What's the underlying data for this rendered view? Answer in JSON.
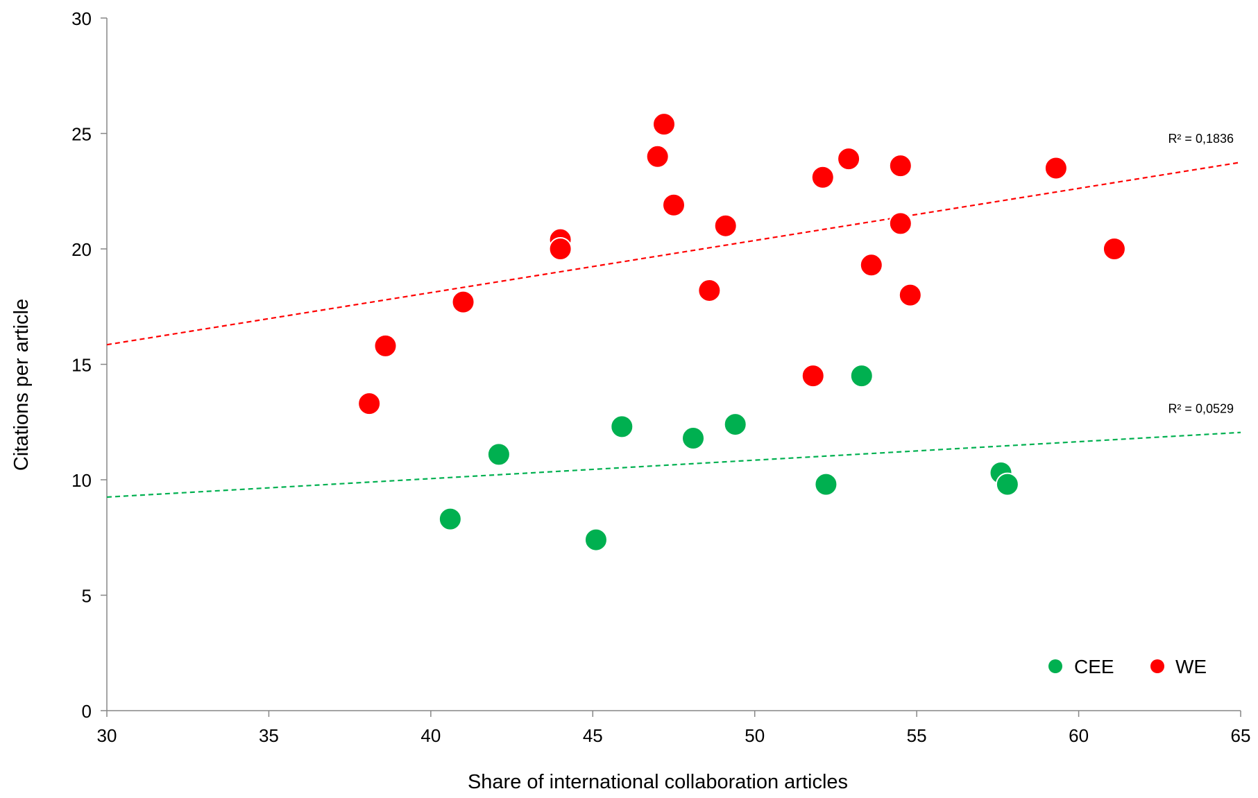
{
  "chart_data": {
    "type": "scatter",
    "title": "",
    "xlabel": "Share of international collaboration articles",
    "ylabel": "Citations per article",
    "xlim": [
      30,
      65
    ],
    "ylim": [
      0,
      30
    ],
    "xticks": [
      30,
      35,
      40,
      45,
      50,
      55,
      60,
      65
    ],
    "yticks": [
      0,
      5,
      10,
      15,
      20,
      25,
      30
    ],
    "grid": false,
    "legend": "bottom-right",
    "series": [
      {
        "name": "CEE",
        "color": "#00b050",
        "points": [
          {
            "x": 40.6,
            "y": 8.3
          },
          {
            "x": 42.1,
            "y": 11.1
          },
          {
            "x": 45.1,
            "y": 7.4
          },
          {
            "x": 45.9,
            "y": 12.3
          },
          {
            "x": 48.1,
            "y": 11.8
          },
          {
            "x": 49.4,
            "y": 12.4
          },
          {
            "x": 52.2,
            "y": 9.8
          },
          {
            "x": 53.3,
            "y": 14.5
          },
          {
            "x": 57.6,
            "y": 10.3
          },
          {
            "x": 57.8,
            "y": 9.8
          }
        ],
        "trendline": {
          "start": [
            30,
            9.25
          ],
          "end": [
            65,
            12.05
          ],
          "r2_label": "R² = 0,0529"
        }
      },
      {
        "name": "WE",
        "color": "#ff0000",
        "points": [
          {
            "x": 38.1,
            "y": 13.3
          },
          {
            "x": 38.6,
            "y": 15.8
          },
          {
            "x": 41.0,
            "y": 17.7
          },
          {
            "x": 44.0,
            "y": 20.4
          },
          {
            "x": 44.0,
            "y": 20.0
          },
          {
            "x": 47.0,
            "y": 24.0
          },
          {
            "x": 47.2,
            "y": 25.4
          },
          {
            "x": 47.5,
            "y": 21.9
          },
          {
            "x": 48.6,
            "y": 18.2
          },
          {
            "x": 49.1,
            "y": 21.0
          },
          {
            "x": 51.8,
            "y": 14.5
          },
          {
            "x": 52.1,
            "y": 23.1
          },
          {
            "x": 52.9,
            "y": 23.9
          },
          {
            "x": 53.6,
            "y": 19.3
          },
          {
            "x": 54.5,
            "y": 23.6
          },
          {
            "x": 54.5,
            "y": 21.1
          },
          {
            "x": 54.8,
            "y": 18.0
          },
          {
            "x": 59.3,
            "y": 23.5
          },
          {
            "x": 61.1,
            "y": 20.0
          }
        ],
        "trendline": {
          "start": [
            30,
            15.85
          ],
          "end": [
            65,
            23.75
          ],
          "r2_label": "R² = 0,1836"
        }
      }
    ]
  }
}
